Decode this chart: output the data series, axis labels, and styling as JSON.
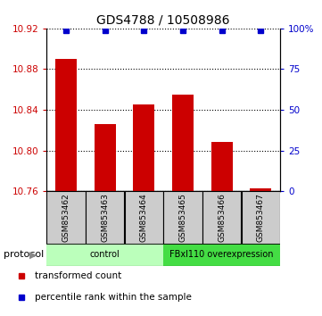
{
  "title": "GDS4788 / 10508986",
  "samples": [
    "GSM853462",
    "GSM853463",
    "GSM853464",
    "GSM853465",
    "GSM853466",
    "GSM853467"
  ],
  "transformed_counts": [
    10.89,
    10.826,
    10.845,
    10.855,
    10.808,
    10.763
  ],
  "percentile_ranks": [
    99,
    99,
    99,
    99,
    99,
    99
  ],
  "ylim_left": [
    10.76,
    10.92
  ],
  "ylim_right": [
    0,
    100
  ],
  "yticks_left": [
    10.76,
    10.8,
    10.84,
    10.88,
    10.92
  ],
  "ytick_labels_left": [
    "10.76",
    "10.80",
    "10.84",
    "10.88",
    "10.92"
  ],
  "yticks_right": [
    0,
    25,
    50,
    75,
    100
  ],
  "ytick_labels_right": [
    "0",
    "25",
    "50",
    "75",
    "100%"
  ],
  "bar_color": "#cc0000",
  "dot_color": "#0000cc",
  "bar_bottom": 10.76,
  "group_colors": [
    "#bbffbb",
    "#44dd44"
  ],
  "group_labels": [
    "control",
    "FBxl110 overexpression"
  ],
  "group_sizes": [
    3,
    3
  ],
  "protocol_label": "protocol",
  "legend_items": [
    {
      "color": "#cc0000",
      "label": "transformed count"
    },
    {
      "color": "#0000cc",
      "label": "percentile rank within the sample"
    }
  ],
  "bar_width": 0.55,
  "sample_box_color": "#cccccc"
}
